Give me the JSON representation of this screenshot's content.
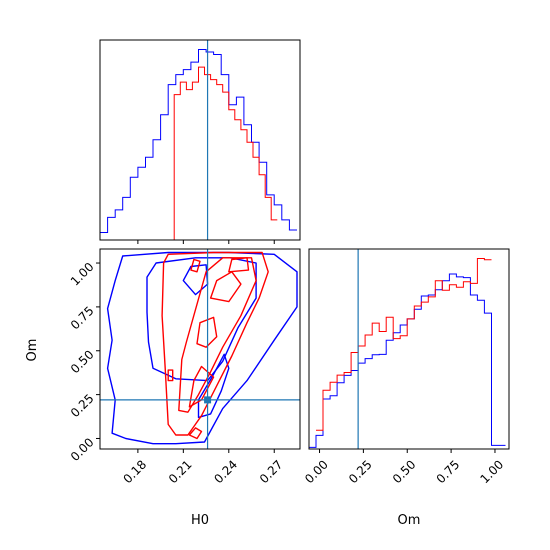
{
  "chart_data": {
    "type": "corner",
    "parameters": [
      "H0",
      "Om"
    ],
    "truth": {
      "H0": 0.226,
      "Om": 0.22
    },
    "colors": {
      "series_a": "#0000ff",
      "series_b": "#ff0000",
      "truth": "#1f77b4"
    },
    "ranges": {
      "H0": [
        0.155,
        0.287
      ],
      "Om": [
        -0.06,
        1.08
      ]
    },
    "ticks": {
      "H0": {
        "values": [
          0.18,
          0.21,
          0.24,
          0.27
        ],
        "labels": [
          "0.18",
          "0.21",
          "0.24",
          "0.27"
        ]
      },
      "Om": {
        "values": [
          0.0,
          0.25,
          0.5,
          0.75,
          1.0
        ],
        "labels": [
          "0.00",
          "0.25",
          "0.50",
          "0.75",
          "1.00"
        ]
      }
    },
    "labels": {
      "x_bottom_left": "H0",
      "x_bottom_right": "Om",
      "y_left": "Om"
    },
    "hist_h0": {
      "blue": {
        "edges": [
          0.155,
          0.16,
          0.165,
          0.17,
          0.175,
          0.18,
          0.185,
          0.19,
          0.195,
          0.2,
          0.205,
          0.21,
          0.215,
          0.22,
          0.225,
          0.23,
          0.235,
          0.24,
          0.245,
          0.25,
          0.255,
          0.26,
          0.265,
          0.27,
          0.275,
          0.28,
          0.285
        ],
        "counts": [
          1.5,
          4.5,
          6,
          8.5,
          12.5,
          14.5,
          16.5,
          20,
          25,
          31,
          33,
          34,
          35.5,
          38,
          37.5,
          37,
          33,
          27,
          28.5,
          23,
          19.5,
          15.5,
          9,
          7,
          4,
          2
        ]
      },
      "red": {
        "edges": [
          0.2,
          0.204,
          0.208,
          0.212,
          0.216,
          0.22,
          0.224,
          0.228,
          0.232,
          0.236,
          0.24,
          0.244,
          0.248,
          0.252,
          0.256,
          0.26,
          0.264,
          0.268,
          0.272
        ],
        "counts": [
          0,
          29,
          31.5,
          30,
          31.5,
          34.5,
          33,
          32,
          31,
          29.5,
          26,
          24,
          22,
          19.5,
          16.5,
          13,
          8.5,
          4
        ]
      }
    },
    "hist_om": {
      "blue": {
        "edges": [
          -0.06,
          -0.02,
          0.02,
          0.06,
          0.1,
          0.14,
          0.18,
          0.22,
          0.26,
          0.3,
          0.34,
          0.38,
          0.42,
          0.46,
          0.5,
          0.54,
          0.58,
          0.62,
          0.66,
          0.7,
          0.74,
          0.78,
          0.82,
          0.86,
          0.9,
          0.94,
          0.98,
          1.02,
          1.06
        ],
        "counts": [
          0.5,
          4.2,
          15.5,
          16.5,
          20.5,
          22.8,
          24.3,
          26.6,
          28.0,
          29.2,
          29.3,
          33.7,
          36.0,
          38.4,
          40.3,
          43.3,
          47.4,
          47.7,
          49.3,
          52.1,
          54.2,
          53.3,
          53.1,
          47.7,
          46.1,
          42.1,
          1.1,
          1.1
        ]
      },
      "red": {
        "edges": [
          -0.02,
          0.02,
          0.06,
          0.1,
          0.14,
          0.18,
          0.22,
          0.26,
          0.3,
          0.34,
          0.38,
          0.42,
          0.46,
          0.5,
          0.54,
          0.58,
          0.62,
          0.66,
          0.7,
          0.74,
          0.78,
          0.82,
          0.86,
          0.9,
          0.94,
          0.98
        ],
        "counts": [
          5.8,
          18.2,
          20.7,
          22.9,
          23.7,
          29.9,
          31.9,
          35.3,
          39.0,
          36.4,
          40.8,
          34.2,
          35.1,
          40.3,
          44.3,
          45.5,
          47.1,
          52.1,
          49.2,
          50.9,
          50.1,
          51.8,
          51.3,
          59.0,
          58.6
        ]
      }
    },
    "contours_2d": {
      "blue": [
        [
          [
            0.163,
            0.03
          ],
          [
            0.165,
            0.22
          ],
          [
            0.16,
            0.4
          ],
          [
            0.163,
            0.56
          ],
          [
            0.16,
            0.74
          ],
          [
            0.165,
            0.9
          ],
          [
            0.17,
            1.04
          ],
          [
            0.2,
            1.06
          ],
          [
            0.24,
            1.06
          ],
          [
            0.27,
            1.05
          ],
          [
            0.285,
            0.95
          ],
          [
            0.285,
            0.75
          ],
          [
            0.27,
            0.56
          ],
          [
            0.252,
            0.33
          ],
          [
            0.236,
            0.17
          ],
          [
            0.224,
            -0.02
          ],
          [
            0.205,
            -0.03
          ],
          [
            0.19,
            -0.03
          ],
          [
            0.172,
            0.0
          ]
        ],
        [
          [
            0.186,
            0.92
          ],
          [
            0.192,
            1.0
          ],
          [
            0.218,
            1.03
          ],
          [
            0.241,
            1.03
          ],
          [
            0.258,
            1.0
          ],
          [
            0.258,
            0.8
          ],
          [
            0.246,
            0.63
          ],
          [
            0.236,
            0.44
          ],
          [
            0.226,
            0.33
          ],
          [
            0.205,
            0.34
          ],
          [
            0.19,
            0.4
          ],
          [
            0.187,
            0.55
          ],
          [
            0.186,
            0.72
          ]
        ],
        [
          [
            0.22,
            0.22
          ],
          [
            0.229,
            0.35
          ],
          [
            0.237,
            0.48
          ],
          [
            0.24,
            0.4
          ],
          [
            0.235,
            0.27
          ],
          [
            0.228,
            0.14
          ],
          [
            0.22,
            0.12
          ]
        ],
        [
          [
            0.21,
            0.9
          ],
          [
            0.215,
            0.98
          ],
          [
            0.225,
            0.99
          ],
          [
            0.226,
            0.88
          ],
          [
            0.218,
            0.82
          ]
        ]
      ],
      "red": [
        [
          [
            0.2,
            0.08
          ],
          [
            0.198,
            0.4
          ],
          [
            0.196,
            0.7
          ],
          [
            0.197,
            1.0
          ],
          [
            0.2,
            1.05
          ],
          [
            0.23,
            1.06
          ],
          [
            0.262,
            1.06
          ],
          [
            0.266,
            0.95
          ],
          [
            0.26,
            0.8
          ],
          [
            0.252,
            0.66
          ],
          [
            0.242,
            0.47
          ],
          [
            0.232,
            0.3
          ],
          [
            0.222,
            0.13
          ],
          [
            0.213,
            0.02
          ],
          [
            0.205,
            0.02
          ]
        ],
        [
          [
            0.207,
            0.16
          ],
          [
            0.209,
            0.45
          ],
          [
            0.212,
            0.55
          ],
          [
            0.225,
            0.95
          ],
          [
            0.236,
            1.03
          ],
          [
            0.255,
            1.03
          ],
          [
            0.258,
            0.9
          ],
          [
            0.248,
            0.7
          ],
          [
            0.236,
            0.52
          ],
          [
            0.228,
            0.38
          ],
          [
            0.22,
            0.25
          ],
          [
            0.213,
            0.15
          ]
        ],
        [
          [
            0.214,
            0.18
          ],
          [
            0.217,
            0.33
          ],
          [
            0.222,
            0.41
          ],
          [
            0.23,
            0.35
          ],
          [
            0.222,
            0.22
          ]
        ],
        [
          [
            0.219,
            0.54
          ],
          [
            0.221,
            0.66
          ],
          [
            0.23,
            0.69
          ],
          [
            0.232,
            0.58
          ],
          [
            0.225,
            0.52
          ]
        ],
        [
          [
            0.228,
            0.8
          ],
          [
            0.232,
            0.9
          ],
          [
            0.242,
            0.95
          ],
          [
            0.248,
            0.88
          ],
          [
            0.24,
            0.78
          ]
        ],
        [
          [
            0.24,
            0.95
          ],
          [
            0.242,
            1.02
          ],
          [
            0.252,
            1.03
          ],
          [
            0.253,
            0.96
          ]
        ],
        [
          [
            0.2,
            0.33
          ],
          [
            0.2,
            0.39
          ],
          [
            0.203,
            0.39
          ],
          [
            0.203,
            0.33
          ]
        ],
        [
          [
            0.215,
            0.96
          ],
          [
            0.217,
            1.02
          ],
          [
            0.221,
            1.01
          ],
          [
            0.219,
            0.95
          ]
        ],
        [
          [
            0.214,
            0.02
          ],
          [
            0.218,
            0.06
          ],
          [
            0.222,
            0.04
          ],
          [
            0.219,
            0.0
          ]
        ]
      ]
    }
  }
}
